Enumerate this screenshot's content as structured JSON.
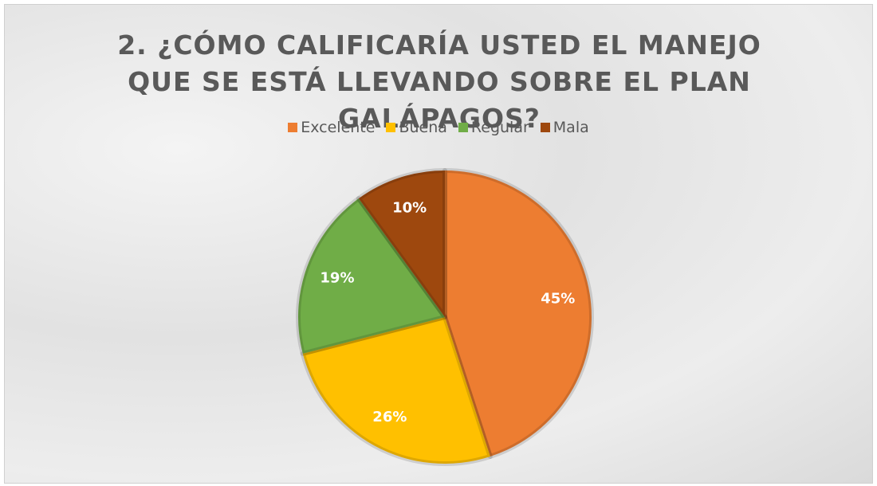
{
  "chart_data": {
    "type": "pie",
    "title": "2. ¿CÓMO CALIFICARÍA USTED EL MANEJO QUE SE ESTÁ LLEVANDO SOBRE EL PLAN GALÁPAGOS?",
    "categories": [
      "Excelente",
      "Buena",
      "Regular",
      "Mala"
    ],
    "values": [
      45,
      26,
      19,
      10
    ],
    "value_labels": [
      "45%",
      "26%",
      "19%",
      "10%"
    ],
    "colors": [
      "#ED7D31",
      "#FFC000",
      "#70AD47",
      "#9E480E"
    ],
    "legend": "top"
  }
}
